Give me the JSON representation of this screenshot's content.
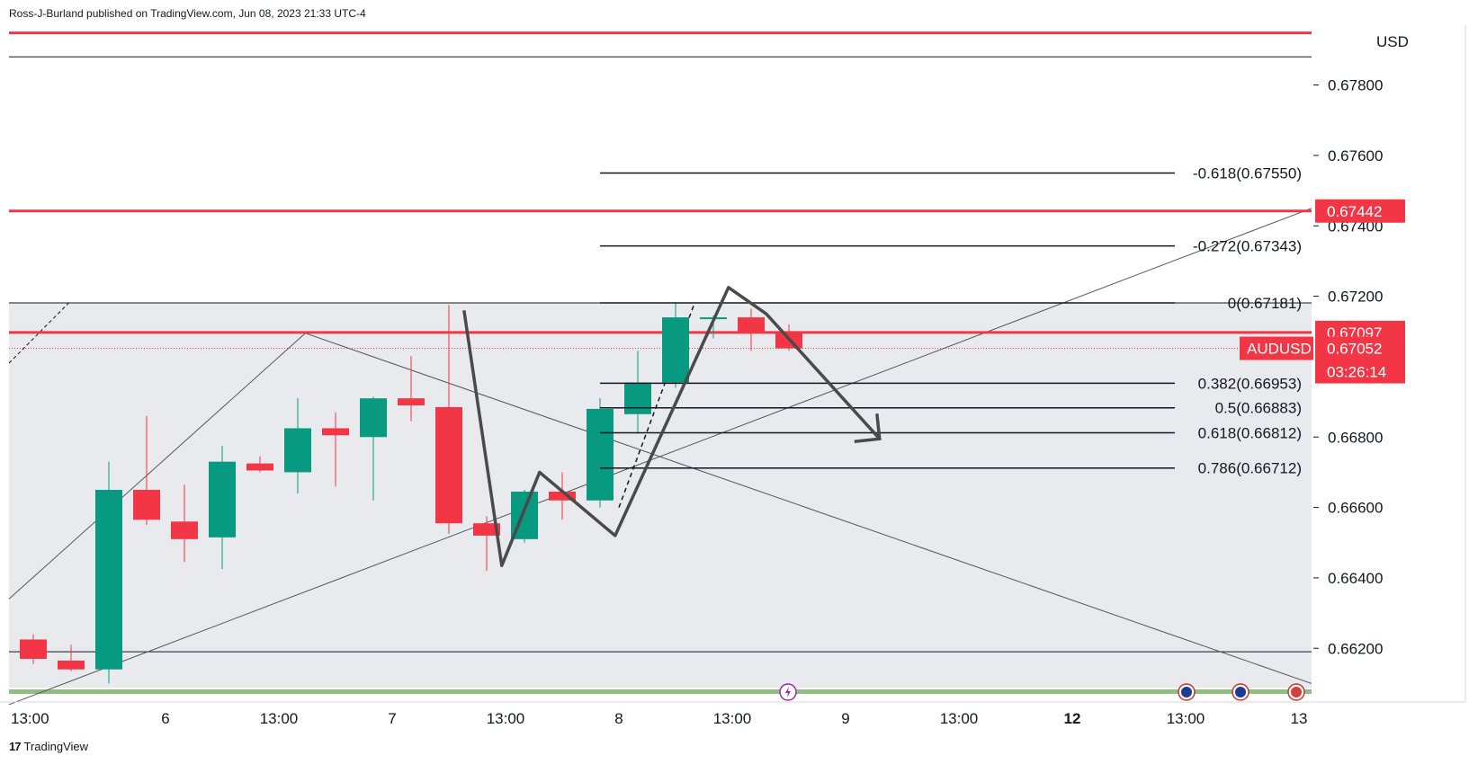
{
  "header": {
    "publisher_line": "Ross-J-Burland published on TradingView.com, Jun 08, 2023 21:33 UTC-4"
  },
  "footer": {
    "brand": "TradingView",
    "brand_icon": "tradingview-logo-icon"
  },
  "chart_data": {
    "type": "candlestick",
    "symbol": "AUDUSD",
    "currency": "USD",
    "last_price": "0.67052",
    "countdown": "03:26:14",
    "ylim": [
      0.6605,
      0.6797
    ],
    "y_ticks": [
      "0.67800",
      "0.67600",
      "0.67400",
      "0.67200",
      "0.66800",
      "0.66600",
      "0.66400",
      "0.66200"
    ],
    "x_ticks": [
      {
        "label": "13:00",
        "bar": 0
      },
      {
        "label": "6",
        "bar": 3.5
      },
      {
        "label": "13:00",
        "bar": 6.5
      },
      {
        "label": "7",
        "bar": 9.5
      },
      {
        "label": "13:00",
        "bar": 12.5
      },
      {
        "label": "8",
        "bar": 15.5
      },
      {
        "label": "13:00",
        "bar": 18.5
      },
      {
        "label": "9",
        "bar": 21.5
      },
      {
        "label": "13:00",
        "bar": 24.5
      },
      {
        "label": "12",
        "bar": 27.5,
        "bold": true
      },
      {
        "label": "13:00",
        "bar": 30.5
      },
      {
        "label": "13",
        "bar": 33.5
      }
    ],
    "candles": [
      {
        "o": 0.66225,
        "h": 0.6624,
        "l": 0.66155,
        "c": 0.6617
      },
      {
        "o": 0.66165,
        "h": 0.6621,
        "l": 0.66135,
        "c": 0.6614
      },
      {
        "o": 0.6614,
        "h": 0.6673,
        "l": 0.661,
        "c": 0.6665
      },
      {
        "o": 0.6665,
        "h": 0.6686,
        "l": 0.6655,
        "c": 0.66565
      },
      {
        "o": 0.6656,
        "h": 0.66665,
        "l": 0.66445,
        "c": 0.6651
      },
      {
        "o": 0.66515,
        "h": 0.66775,
        "l": 0.66425,
        "c": 0.6673
      },
      {
        "o": 0.66725,
        "h": 0.66745,
        "l": 0.667,
        "c": 0.66705
      },
      {
        "o": 0.667,
        "h": 0.6691,
        "l": 0.6664,
        "c": 0.66825
      },
      {
        "o": 0.66825,
        "h": 0.6687,
        "l": 0.6666,
        "c": 0.66805
      },
      {
        "o": 0.668,
        "h": 0.66915,
        "l": 0.6662,
        "c": 0.6691
      },
      {
        "o": 0.6691,
        "h": 0.6703,
        "l": 0.66845,
        "c": 0.6689
      },
      {
        "o": 0.66885,
        "h": 0.67175,
        "l": 0.66525,
        "c": 0.66555
      },
      {
        "o": 0.66555,
        "h": 0.66575,
        "l": 0.6642,
        "c": 0.6652
      },
      {
        "o": 0.6651,
        "h": 0.6665,
        "l": 0.665,
        "c": 0.66645
      },
      {
        "o": 0.66645,
        "h": 0.667,
        "l": 0.66565,
        "c": 0.6662
      },
      {
        "o": 0.6662,
        "h": 0.6691,
        "l": 0.666,
        "c": 0.6688
      },
      {
        "o": 0.66865,
        "h": 0.67045,
        "l": 0.6681,
        "c": 0.66955
      },
      {
        "o": 0.66955,
        "h": 0.6718,
        "l": 0.6694,
        "c": 0.6714
      },
      {
        "o": 0.6714,
        "h": 0.67145,
        "l": 0.6708,
        "c": 0.6714
      },
      {
        "o": 0.6714,
        "h": 0.67165,
        "l": 0.67045,
        "c": 0.671
      },
      {
        "o": 0.67095,
        "h": 0.6712,
        "l": 0.67045,
        "c": 0.67052
      }
    ],
    "horizontal_lines": [
      {
        "price": 0.67948,
        "color": "#f23645"
      },
      {
        "price": 0.67442,
        "color": "#f23645",
        "label": "0.67442"
      },
      {
        "price": 0.67097,
        "color": "#f23645",
        "label": "0.67097"
      }
    ],
    "reference_lines": [
      {
        "price": 0.6788
      },
      {
        "price": 0.67181
      },
      {
        "price": 0.6619
      }
    ],
    "fibonacci": [
      {
        "label": "-0.618(0.67550)",
        "price": 0.6755
      },
      {
        "label": "-0.272(0.67343)",
        "price": 0.67343
      },
      {
        "label": "0(0.67181)",
        "price": 0.67181
      },
      {
        "label": "0.382(0.66953)",
        "price": 0.66953
      },
      {
        "label": "0.5(0.66883)",
        "price": 0.66883
      },
      {
        "label": "0.618(0.66812)",
        "price": 0.66812
      },
      {
        "label": "0.786(0.66712)",
        "price": 0.66712
      }
    ],
    "zigzag": [
      {
        "bar": 11.4,
        "price": 0.6716
      },
      {
        "bar": 12.4,
        "price": 0.66435
      },
      {
        "bar": 13.4,
        "price": 0.667
      },
      {
        "bar": 15.4,
        "price": 0.6652
      },
      {
        "bar": 18.4,
        "price": 0.67225
      },
      {
        "bar": 19.4,
        "price": 0.6715
      },
      {
        "bar": 22.4,
        "price": 0.66795
      }
    ],
    "events": [
      "lightning-event-icon",
      "australia-flag-icon",
      "australia-flag-icon",
      "usa-flag-icon"
    ],
    "colors": {
      "up": "#089981",
      "down": "#f23645",
      "range_fill": "#e9eaed",
      "volume_strip": "#8fbe82"
    }
  }
}
